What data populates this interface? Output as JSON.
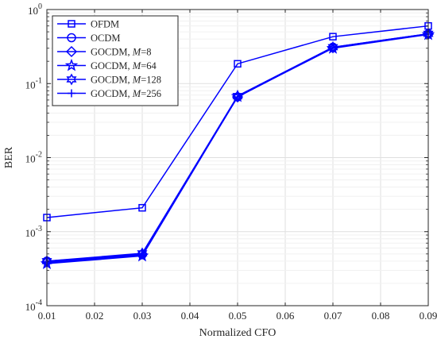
{
  "chart_data": {
    "type": "line",
    "xlabel": "Normalized CFO",
    "ylabel": "BER",
    "xlim": [
      0.01,
      0.09
    ],
    "ylim_exponents": [
      -4,
      0
    ],
    "y_scale": "log",
    "x_ticks": [
      "0.01",
      "0.02",
      "0.03",
      "0.04",
      "0.05",
      "0.06",
      "0.07",
      "0.08",
      "0.09"
    ],
    "y_ticks": [
      {
        "base": "10",
        "exp": "-4",
        "value": 0.0001
      },
      {
        "base": "10",
        "exp": "-3",
        "value": 0.001
      },
      {
        "base": "10",
        "exp": "-2",
        "value": 0.01
      },
      {
        "base": "10",
        "exp": "-1",
        "value": 0.1
      },
      {
        "base": "10",
        "exp": "0",
        "value": 1
      }
    ],
    "grid": true,
    "legend_position": "top-left",
    "x": [
      0.01,
      0.03,
      0.05,
      0.07,
      0.09
    ],
    "series": [
      {
        "name": "OFDM",
        "marker": "square",
        "values": [
          0.00155,
          0.0021,
          0.185,
          0.43,
          0.6
        ]
      },
      {
        "name": "OCDM",
        "marker": "circle",
        "values": [
          0.0004,
          0.00049,
          0.066,
          0.31,
          0.47
        ]
      },
      {
        "name": "GOCDM, M=8",
        "name_prefix": "GOCDM, ",
        "name_var": "M",
        "name_suffix": "=8",
        "marker": "diamond",
        "values": [
          0.00039,
          0.0005,
          0.066,
          0.305,
          0.465
        ]
      },
      {
        "name": "GOCDM, M=64",
        "name_prefix": "GOCDM, ",
        "name_var": "M",
        "name_suffix": "=64",
        "marker": "star5",
        "values": [
          0.00037,
          0.00047,
          0.067,
          0.3,
          0.46
        ]
      },
      {
        "name": "GOCDM, M=128",
        "name_prefix": "GOCDM, ",
        "name_var": "M",
        "name_suffix": "=128",
        "marker": "hexagram",
        "values": [
          0.0004,
          0.00051,
          0.068,
          0.31,
          0.47
        ]
      },
      {
        "name": "GOCDM, M=256",
        "name_prefix": "GOCDM, ",
        "name_var": "M",
        "name_suffix": "=256",
        "marker": "plus",
        "values": [
          0.00038,
          0.00048,
          0.066,
          0.305,
          0.465
        ]
      }
    ],
    "line_color": "#0000ff"
  }
}
